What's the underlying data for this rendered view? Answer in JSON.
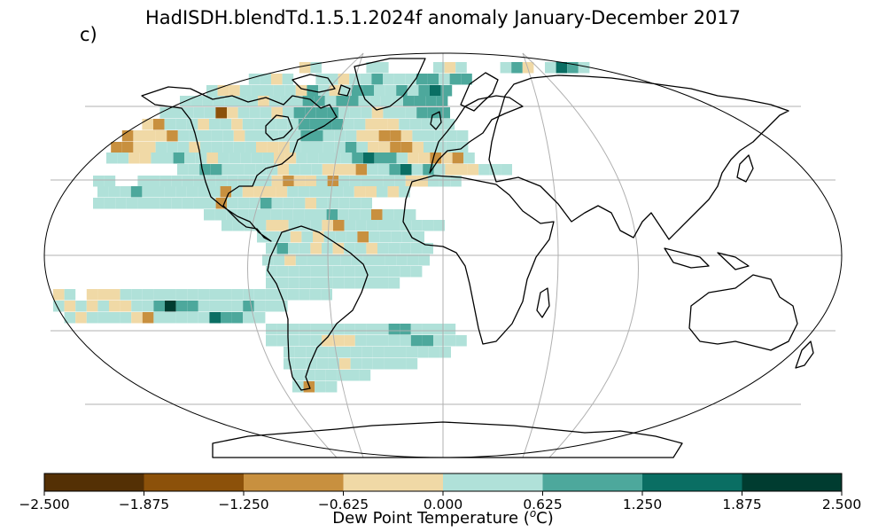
{
  "title": "HadISDH.blendTd.1.5.1.2024f anomaly January-December 2017",
  "panel_label": "c)",
  "colorbar": {
    "label_text": "Dew Point Temperature (",
    "label_unit_sup": "o",
    "label_unit_tail": "C)",
    "tick_labels": [
      "−2.500",
      "−1.875",
      "−1.250",
      "−0.625",
      "0.000",
      "0.625",
      "1.250",
      "1.875",
      "2.500"
    ],
    "colors": [
      "#543005",
      "#8c510a",
      "#c8903f",
      "#f0d9a6",
      "#b0e1d9",
      "#4da89c",
      "#0a6e63",
      "#003c30"
    ]
  },
  "map": {
    "projection": "Robinson",
    "gridlines": true,
    "ocean_color": "#ffffff",
    "gridline_color": "#b0b0b0"
  }
}
